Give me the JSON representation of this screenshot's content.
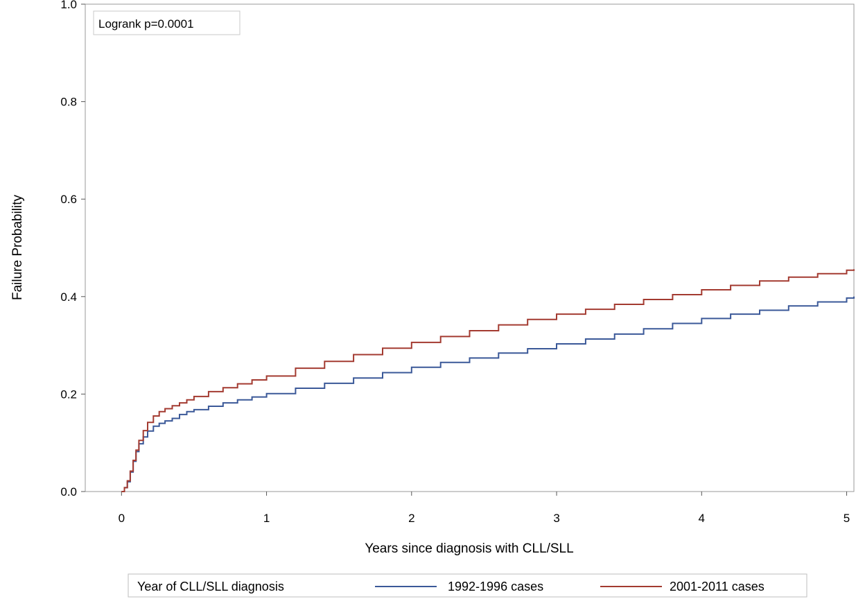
{
  "chart_data": {
    "type": "line",
    "title": "",
    "xlabel": "Years since diagnosis with CLL/SLL",
    "ylabel": "Failure Probability",
    "xlim": [
      -0.25,
      5.05
    ],
    "ylim": [
      0.0,
      1.0
    ],
    "xticks": [
      0,
      1,
      2,
      3,
      4,
      5
    ],
    "yticks": [
      0.0,
      0.2,
      0.4,
      0.6,
      0.8,
      1.0
    ],
    "xtick_labels": [
      "0",
      "1",
      "2",
      "3",
      "4",
      "5"
    ],
    "ytick_labels": [
      "0.0",
      "0.2",
      "0.4",
      "0.6",
      "0.8",
      "1.0"
    ],
    "grid": false,
    "step": true,
    "annotation": "Logrank p=0.0001",
    "legend": {
      "title": "Year of CLL/SLL diagnosis",
      "placement": "bottom"
    },
    "series": [
      {
        "name": "1992-1996 cases",
        "color": "#3a5898",
        "x": [
          0,
          0.02,
          0.04,
          0.06,
          0.08,
          0.1,
          0.12,
          0.15,
          0.18,
          0.22,
          0.26,
          0.3,
          0.35,
          0.4,
          0.45,
          0.5,
          0.6,
          0.7,
          0.8,
          0.9,
          1.0,
          1.2,
          1.4,
          1.6,
          1.8,
          2.0,
          2.2,
          2.4,
          2.6,
          2.8,
          3.0,
          3.2,
          3.4,
          3.6,
          3.8,
          4.0,
          4.2,
          4.4,
          4.6,
          4.8,
          5.0,
          5.05
        ],
        "y": [
          0.0,
          0.008,
          0.02,
          0.04,
          0.062,
          0.082,
          0.098,
          0.112,
          0.124,
          0.134,
          0.14,
          0.145,
          0.15,
          0.158,
          0.164,
          0.168,
          0.175,
          0.182,
          0.188,
          0.194,
          0.201,
          0.212,
          0.222,
          0.233,
          0.244,
          0.255,
          0.265,
          0.274,
          0.284,
          0.293,
          0.303,
          0.313,
          0.323,
          0.334,
          0.345,
          0.355,
          0.364,
          0.372,
          0.381,
          0.389,
          0.397,
          0.4
        ]
      },
      {
        "name": "2001-2011 cases",
        "color": "#a33a30",
        "x": [
          0,
          0.02,
          0.04,
          0.06,
          0.08,
          0.1,
          0.12,
          0.15,
          0.18,
          0.22,
          0.26,
          0.3,
          0.35,
          0.4,
          0.45,
          0.5,
          0.6,
          0.7,
          0.8,
          0.9,
          1.0,
          1.2,
          1.4,
          1.6,
          1.8,
          2.0,
          2.2,
          2.4,
          2.6,
          2.8,
          3.0,
          3.2,
          3.4,
          3.6,
          3.8,
          4.0,
          4.2,
          4.4,
          4.6,
          4.8,
          5.0,
          5.05
        ],
        "y": [
          0.0,
          0.008,
          0.022,
          0.042,
          0.064,
          0.085,
          0.105,
          0.125,
          0.142,
          0.155,
          0.164,
          0.17,
          0.176,
          0.182,
          0.188,
          0.195,
          0.205,
          0.213,
          0.221,
          0.229,
          0.237,
          0.253,
          0.267,
          0.281,
          0.294,
          0.306,
          0.318,
          0.33,
          0.342,
          0.353,
          0.364,
          0.374,
          0.384,
          0.394,
          0.404,
          0.414,
          0.423,
          0.432,
          0.44,
          0.447,
          0.454,
          0.456
        ]
      }
    ]
  }
}
